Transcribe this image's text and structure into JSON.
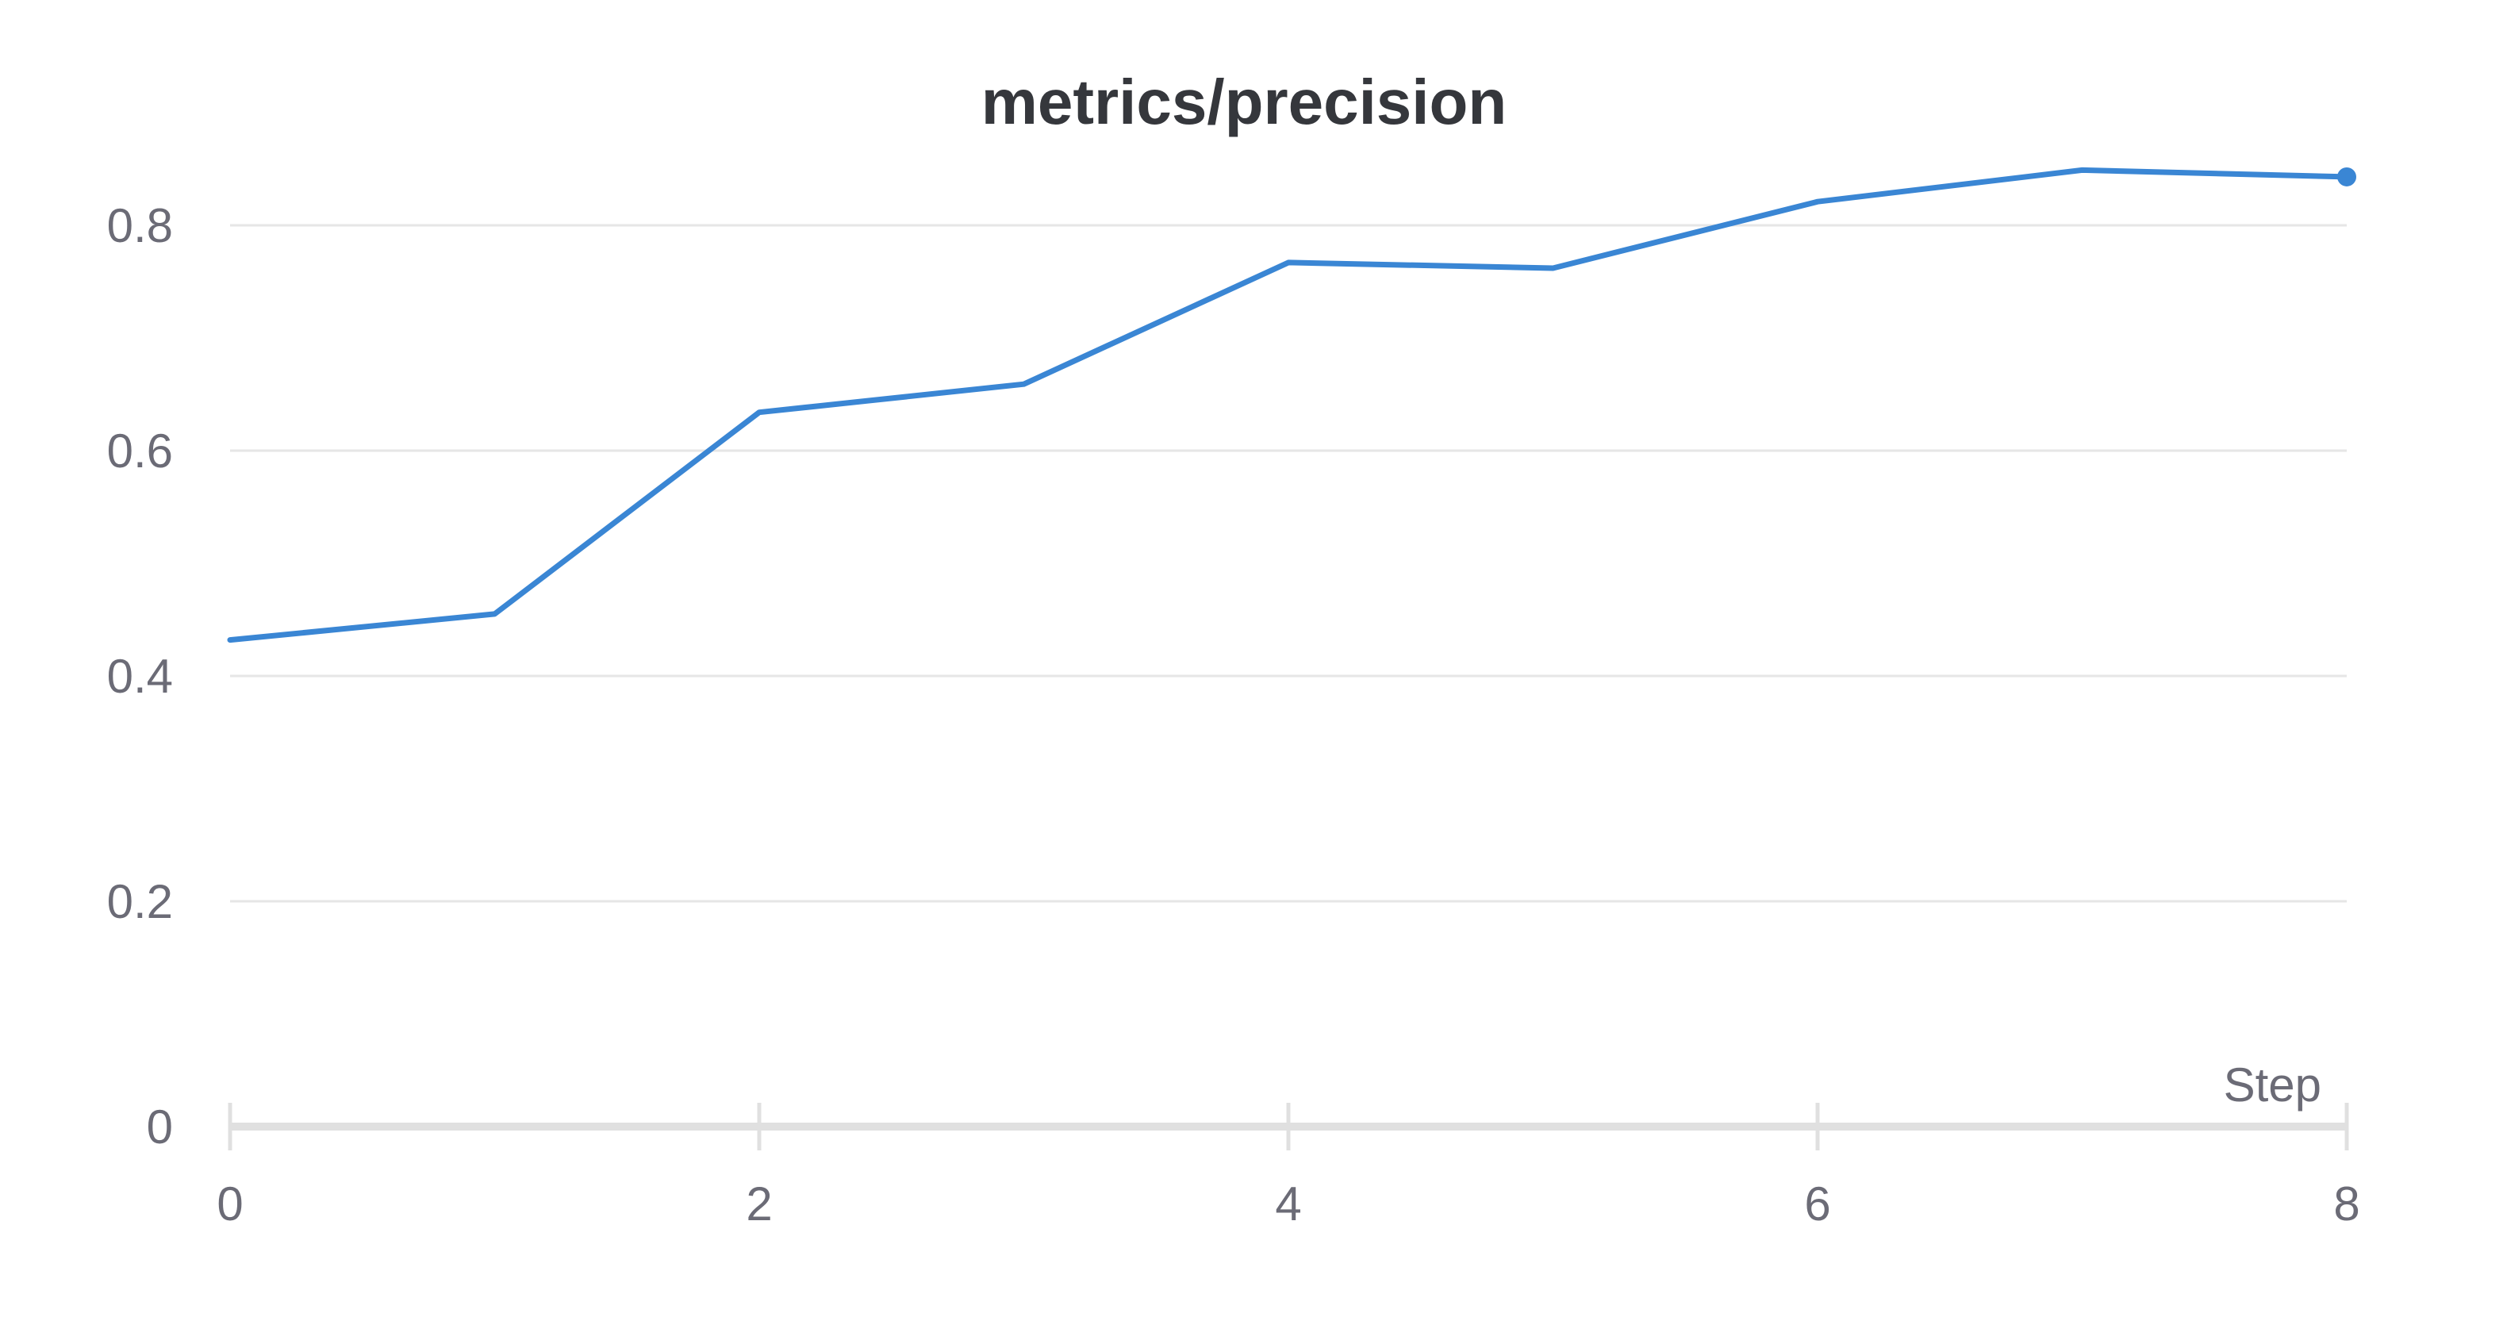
{
  "chart_data": {
    "type": "line",
    "title": "metrics/precision",
    "xlabel": "Step",
    "ylabel": "",
    "x": [
      0,
      1,
      2,
      3,
      4,
      5,
      6,
      7,
      8
    ],
    "series": [
      {
        "values": [
          0.432,
          0.455,
          0.634,
          0.659,
          0.767,
          0.762,
          0.821,
          0.849,
          0.843
        ],
        "color": "#3a86d4"
      }
    ],
    "xlim": [
      0,
      8
    ],
    "ylim": [
      0,
      0.9
    ],
    "x_ticks": [
      "0",
      "2",
      "4",
      "6",
      "8"
    ],
    "y_ticks": [
      "0",
      "0.2",
      "0.4",
      "0.6",
      "0.8"
    ],
    "grid": true,
    "legend": "none",
    "last_point_marker": true
  }
}
